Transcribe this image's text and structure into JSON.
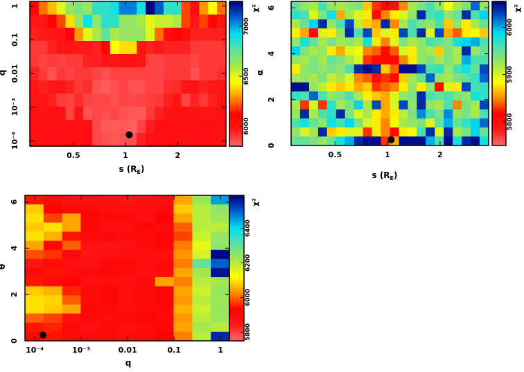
{
  "colormap": [
    "#ff6a6a",
    "#ff1a1a",
    "#ff0000",
    "#ff8c00",
    "#ffff00",
    "#a8e84a",
    "#5fe0a0",
    "#00e0f0",
    "#0060d0",
    "#000080"
  ],
  "chart_data": [
    {
      "type": "heatmap",
      "xlabel": "s (R",
      "xlabel_sub": "E",
      "xlabel_close": ")",
      "ylabel": "q",
      "colorbar_label": "χ²",
      "x_scale": "log",
      "xlim": [
        0.28,
        3.8
      ],
      "y_scale": "log",
      "ylim": [
        6.9e-05,
        1.38
      ],
      "clim": [
        5800,
        7250
      ],
      "xticks": [
        {
          "v": 0.5,
          "label": "0.5"
        },
        {
          "v": 1,
          "label": "1"
        },
        {
          "v": 2,
          "label": "2"
        }
      ],
      "yticks": [
        {
          "v": 0.0001,
          "label": "10⁻⁴"
        },
        {
          "v": 0.001,
          "label": "10⁻³"
        },
        {
          "v": 0.01,
          "label": "0.01"
        },
        {
          "v": 0.1,
          "label": "0.1"
        },
        {
          "v": 1,
          "label": "1"
        }
      ],
      "cticks": [
        {
          "v": 6000,
          "label": "6000"
        },
        {
          "v": 6500,
          "label": "6500"
        },
        {
          "v": 7000,
          "label": "7000"
        }
      ],
      "best_fit": {
        "x": 1.05,
        "y": 0.00015
      },
      "grid": [
        [
          6100,
          6250,
          6350,
          6500,
          6650,
          6700,
          6650,
          6850,
          6850,
          6900,
          7050,
          7050,
          6900,
          7250,
          7100,
          6850,
          6850,
          6200,
          6050,
          6300,
          6450,
          6250
        ],
        [
          6000,
          6000,
          6100,
          6200,
          6400,
          6650,
          6900,
          6650,
          6850,
          6850,
          6650,
          6650,
          6600,
          6500,
          6550,
          6550,
          6600,
          6200,
          6000,
          6200,
          6100,
          6000
        ],
        [
          5950,
          5980,
          6000,
          6000,
          6100,
          6300,
          6500,
          6600,
          6750,
          6600,
          6650,
          6650,
          6650,
          6500,
          6250,
          6050,
          6100,
          6050,
          5950,
          5950,
          5950,
          5950
        ],
        [
          5900,
          5900,
          5950,
          6000,
          6000,
          5980,
          5980,
          5950,
          6100,
          6450,
          6400,
          6400,
          6150,
          5950,
          5980,
          5950,
          5950,
          5950,
          5900,
          5900,
          5900,
          5900
        ],
        [
          5900,
          5880,
          5900,
          5880,
          5900,
          5900,
          5950,
          5950,
          5980,
          6000,
          6020,
          6030,
          6000,
          5880,
          5880,
          5900,
          5900,
          5900,
          5880,
          5900,
          5900,
          5900
        ],
        [
          5950,
          5900,
          5850,
          5900,
          5880,
          5900,
          5900,
          5880,
          5850,
          5880,
          5880,
          5880,
          5880,
          5880,
          5880,
          5900,
          5900,
          5900,
          5850,
          5900,
          5900,
          5920
        ],
        [
          6000,
          5950,
          5980,
          6000,
          5950,
          5900,
          5920,
          5850,
          5830,
          5850,
          5880,
          5850,
          5850,
          5880,
          5880,
          5920,
          5930,
          6000,
          6000,
          5950,
          5980,
          6000
        ],
        [
          6000,
          6000,
          5950,
          5900,
          5880,
          5930,
          5880,
          5870,
          5870,
          5860,
          5880,
          5870,
          5880,
          5890,
          5900,
          5950,
          6000,
          5880,
          5950,
          5900,
          5950,
          6000
        ],
        [
          6020,
          6000,
          6020,
          6020,
          5880,
          6000,
          5850,
          5870,
          5860,
          5870,
          5850,
          5840,
          5830,
          5900,
          5950,
          6000,
          6020,
          6020,
          6010,
          6000,
          6000,
          6020
        ],
        [
          6030,
          6030,
          6030,
          6030,
          6030,
          6030,
          6020,
          5870,
          5840,
          5830,
          5840,
          5820,
          5880,
          5960,
          6030,
          6030,
          6020,
          6030,
          6030,
          6030,
          6030,
          6030
        ],
        [
          6030,
          6030,
          6030,
          6030,
          6030,
          6030,
          6030,
          5870,
          5850,
          5840,
          5850,
          5860,
          5950,
          6030,
          6030,
          6030,
          6030,
          6030,
          6030,
          6030,
          6030,
          6030
        ]
      ]
    },
    {
      "type": "heatmap",
      "xlabel": "s (R",
      "xlabel_sub": "E",
      "xlabel_close": ")",
      "ylabel": "α",
      "colorbar_label": "χ²",
      "x_scale": "log",
      "xlim": [
        0.28,
        3.8
      ],
      "y_scale": "linear",
      "ylim": [
        0,
        6.283
      ],
      "clim": [
        5750,
        6055
      ],
      "xticks": [
        {
          "v": 0.5,
          "label": "0.5"
        },
        {
          "v": 1,
          "label": "1"
        },
        {
          "v": 2,
          "label": "2"
        }
      ],
      "yticks": [
        {
          "v": 0,
          "label": "0"
        },
        {
          "v": 2,
          "label": "2"
        },
        {
          "v": 4,
          "label": "4"
        },
        {
          "v": 6,
          "label": "6"
        }
      ],
      "cticks": [
        {
          "v": 5800,
          "label": "5800"
        },
        {
          "v": 5900,
          "label": "5900"
        },
        {
          "v": 6000,
          "label": "6000"
        }
      ],
      "best_fit": {
        "x": 1.05,
        "y": 0.25
      },
      "grid": [
        [
          5950,
          5930,
          5920,
          5960,
          5930,
          5920,
          5930,
          5940,
          5870,
          5830,
          5820,
          5800,
          5850,
          5920,
          5940,
          5960,
          5930,
          5890,
          5920,
          5940,
          6020,
          5930
        ],
        [
          5970,
          5960,
          5900,
          5940,
          5980,
          5860,
          5920,
          5900,
          5880,
          5820,
          5850,
          5880,
          5900,
          5930,
          6040,
          5960,
          5970,
          5930,
          5950,
          6040,
          5960,
          5990
        ],
        [
          5920,
          5950,
          5990,
          6040,
          5930,
          5960,
          6030,
          5910,
          5870,
          5860,
          6040,
          5850,
          5920,
          5960,
          5940,
          5930,
          5960,
          5870,
          5930,
          5880,
          5920,
          5950
        ],
        [
          5880,
          5860,
          5820,
          5900,
          5880,
          5930,
          6040,
          5960,
          6030,
          5870,
          5900,
          5880,
          6030,
          5960,
          6040,
          5900,
          6030,
          5860,
          5840,
          5880,
          5890,
          5870
        ],
        [
          5930,
          5980,
          5950,
          5920,
          5940,
          5920,
          5930,
          5920,
          5980,
          5880,
          5850,
          5900,
          5940,
          5920,
          5930,
          5960,
          5950,
          5940,
          5980,
          5990,
          6000,
          5960
        ],
        [
          5990,
          5940,
          5920,
          5930,
          5880,
          5860,
          5900,
          5890,
          5850,
          5840,
          5820,
          5840,
          5900,
          5880,
          5930,
          5920,
          5870,
          5940,
          5920,
          6040,
          5930,
          5950
        ],
        [
          5930,
          5920,
          5940,
          5920,
          5950,
          5940,
          5920,
          5900,
          5830,
          5820,
          5810,
          5820,
          5850,
          5880,
          5930,
          5940,
          5920,
          5940,
          5920,
          6000,
          5960,
          5960
        ],
        [
          5880,
          5930,
          5940,
          5930,
          5940,
          5930,
          5960,
          6040,
          6050,
          6040,
          5870,
          5840,
          6050,
          6050,
          6030,
          5960,
          5970,
          5930,
          5960,
          5980,
          5950,
          6030
        ],
        [
          5920,
          5930,
          5920,
          5940,
          5910,
          5920,
          5900,
          5850,
          5840,
          5820,
          5830,
          5820,
          5870,
          5920,
          5950,
          6020,
          5930,
          5920,
          5940,
          5950,
          5970,
          6020
        ],
        [
          6050,
          6050,
          5930,
          5910,
          5880,
          5870,
          5880,
          5860,
          5870,
          5830,
          5840,
          5850,
          5880,
          5930,
          5880,
          5930,
          5820,
          5900,
          5880,
          6030,
          5960,
          5970
        ],
        [
          5970,
          5960,
          6020,
          5960,
          5930,
          5940,
          5960,
          5920,
          5880,
          5870,
          5860,
          5900,
          5930,
          5940,
          6040,
          5960,
          5950,
          5960,
          5940,
          5930,
          5980,
          5970
        ],
        [
          5920,
          5830,
          5900,
          5830,
          5970,
          5920,
          5940,
          5990,
          5920,
          6030,
          5860,
          5900,
          6030,
          5930,
          6040,
          5930,
          5920,
          5960,
          5850,
          5940,
          5920,
          6030
        ],
        [
          5930,
          6040,
          5920,
          5960,
          5970,
          6040,
          5940,
          5900,
          5920,
          5880,
          5860,
          5880,
          5910,
          5940,
          6010,
          5960,
          5940,
          6010,
          5930,
          5940,
          5920,
          5960
        ],
        [
          5960,
          5980,
          5950,
          5930,
          5980,
          5960,
          5990,
          5940,
          5900,
          5880,
          5850,
          5890,
          5920,
          5930,
          5940,
          5900,
          5950,
          6000,
          5950,
          5970,
          5990,
          6020
        ],
        [
          5930,
          5900,
          5920,
          6040,
          5870,
          5880,
          5900,
          5900,
          5830,
          5880,
          5850,
          5820,
          5880,
          5890,
          5960,
          6040,
          5900,
          6040,
          5920,
          5940,
          5990,
          5950
        ],
        [
          5950,
          5950,
          5940,
          5930,
          5950,
          5980,
          6000,
          6040,
          6050,
          6050,
          5830,
          5860,
          6050,
          6050,
          6050,
          6000,
          5960,
          6050,
          5980,
          6040,
          6050,
          5980
        ]
      ]
    },
    {
      "type": "heatmap",
      "xlabel": "q",
      "ylabel": "θ",
      "colorbar_label": "χ²",
      "x_scale": "log",
      "xlim": [
        6.17e-05,
        1.55
      ],
      "y_scale": "linear",
      "ylim": [
        0,
        6.283
      ],
      "clim": [
        5750,
        6590
      ],
      "xticks": [
        {
          "v": 0.0001,
          "label": "10⁻⁴"
        },
        {
          "v": 0.001,
          "label": "10⁻³"
        },
        {
          "v": 0.01,
          "label": "0.01"
        },
        {
          "v": 0.1,
          "label": "0.1"
        },
        {
          "v": 1,
          "label": "1"
        }
      ],
      "yticks": [
        {
          "v": 0,
          "label": "0"
        },
        {
          "v": 2,
          "label": "2"
        },
        {
          "v": 4,
          "label": "4"
        },
        {
          "v": 6,
          "label": "6"
        }
      ],
      "cticks": [
        {
          "v": 5800,
          "label": "5800"
        },
        {
          "v": 6000,
          "label": "6000"
        },
        {
          "v": 6200,
          "label": "6200"
        },
        {
          "v": 6400,
          "label": "6400"
        }
      ],
      "best_fit": {
        "x": 0.00015,
        "y": 0.25
      },
      "grid": [
        [
          5950,
          5900,
          5880,
          5890,
          5880,
          5870,
          5880,
          5890,
          6050,
          6230,
          6450
        ],
        [
          6080,
          5930,
          5900,
          5900,
          5890,
          5880,
          5890,
          5900,
          6080,
          6200,
          6250
        ],
        [
          6100,
          5980,
          6050,
          5920,
          5900,
          5900,
          5880,
          5930,
          6050,
          6200,
          6230
        ],
        [
          6080,
          6100,
          6050,
          5920,
          5880,
          5890,
          5920,
          5900,
          6000,
          6200,
          6200
        ],
        [
          6100,
          6060,
          5950,
          5900,
          5910,
          5900,
          5900,
          5920,
          5980,
          6180,
          6240
        ],
        [
          6050,
          5920,
          6000,
          5880,
          5870,
          5880,
          5900,
          5920,
          6020,
          6150,
          6250
        ],
        [
          5990,
          5970,
          5900,
          5870,
          5880,
          5890,
          5880,
          5890,
          6040,
          6170,
          6580
        ],
        [
          5870,
          5900,
          5880,
          5880,
          5900,
          5910,
          5890,
          5900,
          6020,
          6300,
          6500
        ],
        [
          5900,
          5950,
          5890,
          5900,
          5910,
          5900,
          5880,
          5890,
          6050,
          6220,
          6570
        ],
        [
          5950,
          5900,
          5920,
          5880,
          5890,
          5880,
          5900,
          6050,
          6020,
          6200,
          6220
        ],
        [
          6080,
          6060,
          5960,
          5900,
          5910,
          5890,
          5900,
          5920,
          6050,
          6180,
          6240
        ],
        [
          6100,
          6090,
          6000,
          5900,
          5910,
          5890,
          5900,
          5920,
          6040,
          6200,
          6230
        ],
        [
          6100,
          6080,
          6050,
          5910,
          5900,
          5890,
          5900,
          5910,
          6060,
          6180,
          6240
        ],
        [
          6000,
          5980,
          5880,
          5900,
          5890,
          5900,
          5920,
          5900,
          6040,
          6200,
          6230
        ],
        [
          5950,
          5960,
          5900,
          5880,
          5900,
          5880,
          5900,
          5920,
          6050,
          6220,
          6200
        ],
        [
          5920,
          5950,
          5900,
          5900,
          5900,
          5890,
          5900,
          5930,
          6020,
          6200,
          6550
        ]
      ]
    }
  ]
}
